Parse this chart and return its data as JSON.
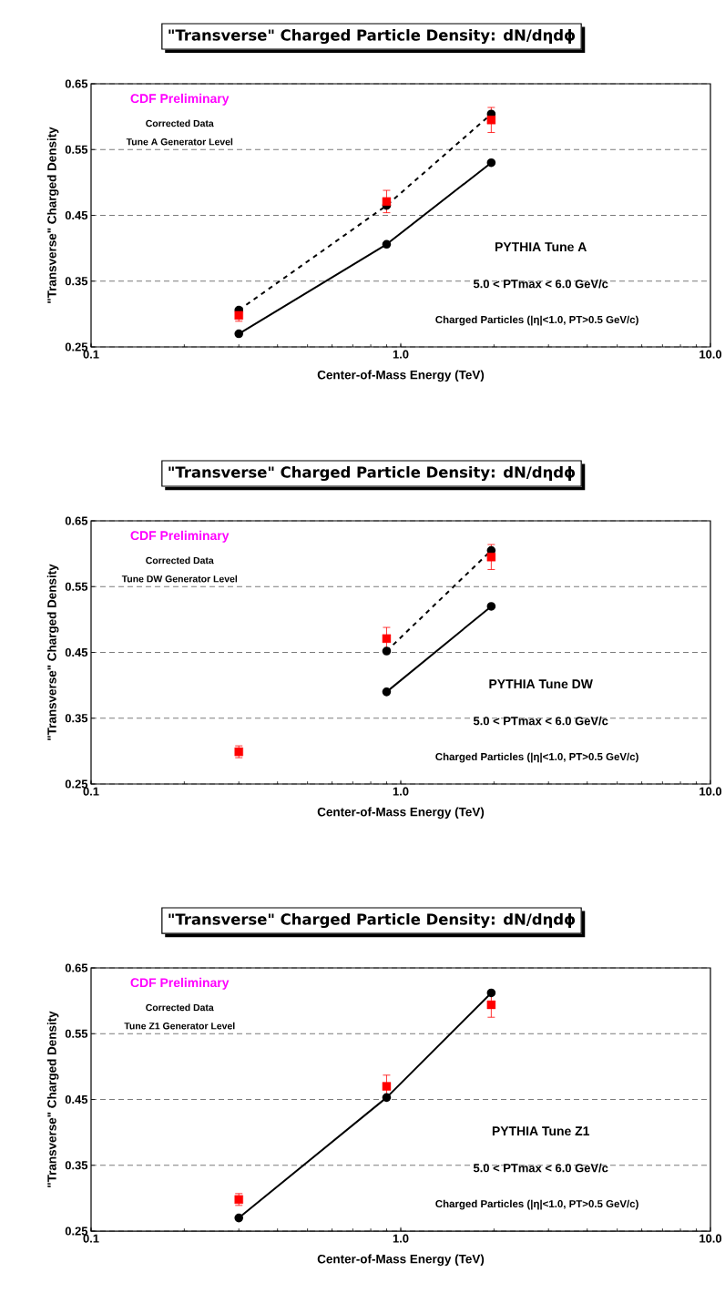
{
  "chart_data": [
    {
      "type": "line",
      "title": "\"Transverse\" Charged Particle Density: dN/dηdϕ",
      "xlabel": "Center-of-Mass Energy  (TeV)",
      "ylabel": "\"Transverse\" Charged Density",
      "log": "x",
      "grid": "y",
      "x": [
        0.3,
        0.9,
        1.96
      ],
      "xlim": [
        0.1,
        10
      ],
      "xticks": [
        {
          "value": 0.1,
          "label": "0.1"
        },
        {
          "value": 1,
          "label": "1.0"
        },
        {
          "value": 10,
          "label": "10.0"
        }
      ],
      "ylim": [
        0.25,
        0.65
      ],
      "yticks": [
        0.25,
        0.35,
        0.45,
        0.55,
        0.65
      ],
      "series": [
        {
          "color": "#000000",
          "line_style": "dashed",
          "marker": "circle",
          "values": [
            0.306,
            0.465,
            0.604
          ]
        },
        {
          "color": "#000000",
          "line_style": "solid",
          "marker": "circle",
          "values": [
            0.27,
            0.406,
            0.53
          ]
        },
        {
          "type": "scatter",
          "color": "#ff0000",
          "marker": "square",
          "values": [
            0.298,
            0.471,
            0.595
          ],
          "errors": [
            0.009,
            0.017,
            0.019
          ]
        }
      ],
      "annotations": [
        "CDF Preliminary",
        "Corrected Data",
        "Tune A Generator Level",
        "PYTHIA Tune A",
        "5.0 < PTmax < 6.0 GeV/c",
        "Charged Particles (|η|<1.0, PT>0.5 GeV/c)"
      ]
    },
    {
      "type": "line",
      "title": "\"Transverse\" Charged Particle Density: dN/dηdϕ",
      "xlabel": "Center-of-Mass Energy  (TeV)",
      "ylabel": "\"Transverse\" Charged Density",
      "log": "x",
      "grid": "y",
      "x": [
        0.3,
        0.9,
        1.96
      ],
      "xlim": [
        0.1,
        10
      ],
      "xticks": [
        {
          "value": 0.1,
          "label": "0.1"
        },
        {
          "value": 1,
          "label": "1.0"
        },
        {
          "value": 10,
          "label": "10.0"
        }
      ],
      "ylim": [
        0.25,
        0.65
      ],
      "yticks": [
        0.25,
        0.35,
        0.45,
        0.55,
        0.65
      ],
      "series": [
        {
          "color": "#000000",
          "line_style": "dashed",
          "marker": "circle",
          "values": [
            null,
            0.452,
            0.605
          ]
        },
        {
          "color": "#000000",
          "line_style": "solid",
          "marker": "circle",
          "values": [
            null,
            0.39,
            0.52
          ]
        },
        {
          "type": "scatter",
          "color": "#ff0000",
          "marker": "square",
          "values": [
            0.299,
            0.471,
            0.595
          ],
          "errors": [
            0.009,
            0.017,
            0.019
          ]
        }
      ],
      "annotations": [
        "CDF Preliminary",
        "Corrected Data",
        "Tune DW Generator Level",
        "PYTHIA Tune DW",
        "5.0 < PTmax < 6.0 GeV/c",
        "Charged Particles (|η|<1.0, PT>0.5 GeV/c)"
      ]
    },
    {
      "type": "line",
      "title": "\"Transverse\" Charged Particle Density: dN/dηdϕ",
      "xlabel": "Center-of-Mass Energy  (TeV)",
      "ylabel": "\"Transverse\" Charged Density",
      "log": "x",
      "grid": "y",
      "x": [
        0.3,
        0.9,
        1.96
      ],
      "xlim": [
        0.1,
        10
      ],
      "xticks": [
        {
          "value": 0.1,
          "label": "0.1"
        },
        {
          "value": 1,
          "label": "1.0"
        },
        {
          "value": 10,
          "label": "10.0"
        }
      ],
      "ylim": [
        0.25,
        0.65
      ],
      "yticks": [
        0.25,
        0.35,
        0.45,
        0.55,
        0.65
      ],
      "series": [
        {
          "color": "#000000",
          "line_style": "solid",
          "marker": "circle",
          "values": [
            0.27,
            0.453,
            0.612
          ]
        },
        {
          "type": "scatter",
          "color": "#ff0000",
          "marker": "square",
          "values": [
            0.298,
            0.47,
            0.594
          ],
          "errors": [
            0.009,
            0.017,
            0.019
          ]
        }
      ],
      "annotations": [
        "CDF Preliminary",
        "Corrected Data",
        "Tune Z1 Generator Level",
        "PYTHIA Tune Z1",
        "5.0 < PTmax < 6.0 GeV/c",
        "Charged Particles (|η|<1.0, PT>0.5 GeV/c)"
      ]
    }
  ]
}
